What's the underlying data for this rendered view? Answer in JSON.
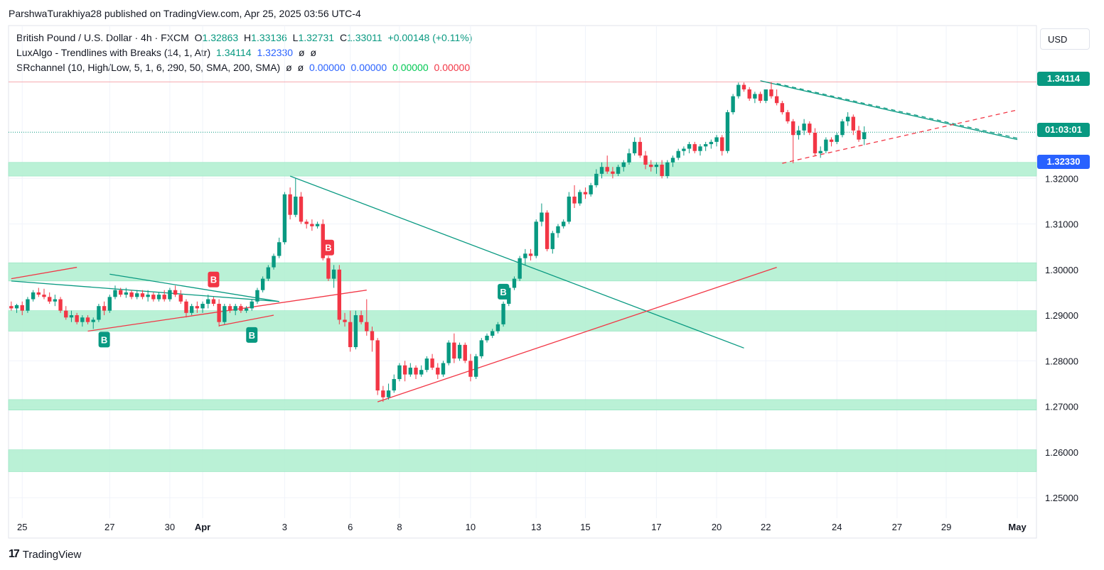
{
  "header": {
    "publisher_line": "ParshwaTurakhiya28 published on TradingView.com, Apr 25, 2025 03:56 UTC-4"
  },
  "legend": {
    "symbol": "British Pound / U.S. Dollar · 4h · FXCM",
    "o_label": "O",
    "o": "1.32863",
    "h_label": "H",
    "h": "1.33136",
    "l_label": "L",
    "l": "1.32731",
    "c_label": "C",
    "c": "1.33011",
    "change": "+0.00148 (+0.11%)",
    "ind1_name": "LuxAlgo - Trendlines with Breaks (14, 1, Atr)",
    "ind1_v1": "1.34114",
    "ind1_v2": "1.32330",
    "ind1_v3": "ø",
    "ind1_v4": "ø",
    "ind2_name": "SRchannel (10, High/Low, 5, 1, 6, 290, 50, SMA, 200, SMA)",
    "ind2_v1": "ø",
    "ind2_v2": "ø",
    "ind2_v3": "0.00000",
    "ind2_v4": "0.00000",
    "ind2_v5": "0.00000",
    "ind2_v6": "0.00000"
  },
  "currency": "USD",
  "price_tags": {
    "upper": "1.34114",
    "countdown": "01:03:01",
    "lower": "1.32330"
  },
  "footer": {
    "brand": "TradingView",
    "logo_glyph": "17"
  },
  "colors": {
    "up": "#089981",
    "down": "#f23645",
    "zone": "#b2f0d2",
    "accent_blue": "#2962ff"
  },
  "chart_data": {
    "type": "candlestick",
    "symbol": "GBPUSD",
    "timeframe": "4h",
    "ylim": [
      1.2455,
      1.3535
    ],
    "y_ticks": [
      "1.32000",
      "1.31000",
      "1.30000",
      "1.29000",
      "1.28000",
      "1.27000",
      "1.26000",
      "1.25000"
    ],
    "y_tick_values": [
      1.32,
      1.31,
      1.3,
      1.29,
      1.28,
      1.27,
      1.26,
      1.25
    ],
    "x_ticks": [
      {
        "label": "25",
        "bar": 2
      },
      {
        "label": "27",
        "bar": 18
      },
      {
        "label": "30",
        "bar": 29
      },
      {
        "label": "Apr",
        "bar": 35
      },
      {
        "label": "3",
        "bar": 50
      },
      {
        "label": "6",
        "bar": 62
      },
      {
        "label": "8",
        "bar": 71
      },
      {
        "label": "10",
        "bar": 84
      },
      {
        "label": "13",
        "bar": 96
      },
      {
        "label": "15",
        "bar": 105
      },
      {
        "label": "17",
        "bar": 118
      },
      {
        "label": "20",
        "bar": 129
      },
      {
        "label": "22",
        "bar": 138
      },
      {
        "label": "24",
        "bar": 151
      },
      {
        "label": "27",
        "bar": 162
      },
      {
        "label": "29",
        "bar": 171
      },
      {
        "label": "May",
        "bar": 184
      }
    ],
    "sr_zones": [
      [
        1.3205,
        1.3235
      ],
      [
        1.2975,
        1.3015
      ],
      [
        1.2865,
        1.291
      ],
      [
        1.2692,
        1.2715
      ],
      [
        1.2557,
        1.2605
      ]
    ],
    "candles": [
      [
        1.292,
        1.293,
        1.291,
        1.2915
      ],
      [
        1.2915,
        1.2925,
        1.2905,
        1.2922
      ],
      [
        1.2922,
        1.293,
        1.29,
        1.291
      ],
      [
        1.291,
        1.294,
        1.2905,
        1.2935
      ],
      [
        1.2935,
        1.2955,
        1.293,
        1.295
      ],
      [
        1.295,
        1.296,
        1.294,
        1.2945
      ],
      [
        1.2945,
        1.2958,
        1.2935,
        1.294
      ],
      [
        1.294,
        1.295,
        1.2925,
        1.293
      ],
      [
        1.293,
        1.2945,
        1.292,
        1.2935
      ],
      [
        1.2935,
        1.294,
        1.2905,
        1.291
      ],
      [
        1.291,
        1.292,
        1.289,
        1.2895
      ],
      [
        1.2895,
        1.291,
        1.2885,
        1.29
      ],
      [
        1.29,
        1.2905,
        1.288,
        1.2885
      ],
      [
        1.2885,
        1.29,
        1.2875,
        1.2895
      ],
      [
        1.2895,
        1.29,
        1.288,
        1.2885
      ],
      [
        1.2885,
        1.2895,
        1.287,
        1.289
      ],
      [
        1.289,
        1.2925,
        1.2885,
        1.292
      ],
      [
        1.292,
        1.293,
        1.29,
        1.291
      ],
      [
        1.291,
        1.2945,
        1.2905,
        1.294
      ],
      [
        1.294,
        1.2965,
        1.2935,
        1.2955
      ],
      [
        1.2955,
        1.296,
        1.294,
        1.2945
      ],
      [
        1.2945,
        1.296,
        1.2938,
        1.295
      ],
      [
        1.295,
        1.2955,
        1.2935,
        1.294
      ],
      [
        1.294,
        1.2955,
        1.2935,
        1.2948
      ],
      [
        1.2948,
        1.2955,
        1.2935,
        1.294
      ],
      [
        1.294,
        1.2955,
        1.293,
        1.2945
      ],
      [
        1.2945,
        1.295,
        1.293,
        1.2935
      ],
      [
        1.2935,
        1.295,
        1.293,
        1.2945
      ],
      [
        1.2945,
        1.2955,
        1.293,
        1.2935
      ],
      [
        1.2935,
        1.296,
        1.293,
        1.2955
      ],
      [
        1.2955,
        1.2965,
        1.294,
        1.2945
      ],
      [
        1.2945,
        1.2955,
        1.2925,
        1.293
      ],
      [
        1.293,
        1.2935,
        1.2895,
        1.2905
      ],
      [
        1.2905,
        1.2925,
        1.29,
        1.292
      ],
      [
        1.292,
        1.293,
        1.2905,
        1.2915
      ],
      [
        1.2915,
        1.293,
        1.2905,
        1.2925
      ],
      [
        1.2925,
        1.2945,
        1.2915,
        1.2935
      ],
      [
        1.2935,
        1.294,
        1.292,
        1.2925
      ],
      [
        1.2925,
        1.2935,
        1.2875,
        1.2885
      ],
      [
        1.2885,
        1.2925,
        1.288,
        1.292
      ],
      [
        1.292,
        1.2925,
        1.2905,
        1.291
      ],
      [
        1.291,
        1.2925,
        1.29,
        1.292
      ],
      [
        1.292,
        1.2925,
        1.2905,
        1.291
      ],
      [
        1.291,
        1.292,
        1.2905,
        1.2915
      ],
      [
        1.2915,
        1.2935,
        1.291,
        1.293
      ],
      [
        1.293,
        1.296,
        1.2925,
        1.2955
      ],
      [
        1.2955,
        1.2985,
        1.295,
        1.298
      ],
      [
        1.298,
        1.301,
        1.2975,
        1.3005
      ],
      [
        1.3005,
        1.3035,
        1.3,
        1.303
      ],
      [
        1.303,
        1.307,
        1.3025,
        1.306
      ],
      [
        1.306,
        1.317,
        1.3055,
        1.3165
      ],
      [
        1.3165,
        1.318,
        1.311,
        1.312
      ],
      [
        1.312,
        1.32,
        1.3115,
        1.316
      ],
      [
        1.316,
        1.317,
        1.31,
        1.3105
      ],
      [
        1.3105,
        1.311,
        1.309,
        1.31
      ],
      [
        1.31,
        1.311,
        1.3085,
        1.3095
      ],
      [
        1.3095,
        1.3105,
        1.309,
        1.31
      ],
      [
        1.31,
        1.311,
        1.302,
        1.3025
      ],
      [
        1.3025,
        1.303,
        1.2975,
        1.298
      ],
      [
        1.298,
        1.301,
        1.296,
        1.3
      ],
      [
        1.3,
        1.301,
        1.288,
        1.289
      ],
      [
        1.289,
        1.2905,
        1.2875,
        1.2885
      ],
      [
        1.2885,
        1.291,
        1.282,
        1.283
      ],
      [
        1.283,
        1.291,
        1.2825,
        1.29
      ],
      [
        1.29,
        1.291,
        1.288,
        1.2885
      ],
      [
        1.2885,
        1.2935,
        1.2855,
        1.2865
      ],
      [
        1.2865,
        1.2875,
        1.282,
        1.2845
      ],
      [
        1.2845,
        1.285,
        1.2725,
        1.2735
      ],
      [
        1.2735,
        1.2745,
        1.271,
        1.272
      ],
      [
        1.272,
        1.275,
        1.2715,
        1.2735
      ],
      [
        1.2735,
        1.277,
        1.273,
        1.276
      ],
      [
        1.276,
        1.2795,
        1.2755,
        1.279
      ],
      [
        1.279,
        1.28,
        1.2755,
        1.277
      ],
      [
        1.277,
        1.2795,
        1.2765,
        1.2785
      ],
      [
        1.2785,
        1.279,
        1.276,
        1.277
      ],
      [
        1.277,
        1.279,
        1.2765,
        1.278
      ],
      [
        1.278,
        1.281,
        1.2775,
        1.2805
      ],
      [
        1.2805,
        1.2815,
        1.278,
        1.2785
      ],
      [
        1.2785,
        1.2795,
        1.276,
        1.277
      ],
      [
        1.277,
        1.28,
        1.2765,
        1.2795
      ],
      [
        1.2795,
        1.2845,
        1.279,
        1.284
      ],
      [
        1.284,
        1.286,
        1.2795,
        1.2805
      ],
      [
        1.2805,
        1.284,
        1.28,
        1.2835
      ],
      [
        1.2835,
        1.284,
        1.2795,
        1.28
      ],
      [
        1.28,
        1.2815,
        1.2755,
        1.2765
      ],
      [
        1.2765,
        1.2815,
        1.276,
        1.281
      ],
      [
        1.281,
        1.285,
        1.2805,
        1.2845
      ],
      [
        1.2845,
        1.286,
        1.284,
        1.2855
      ],
      [
        1.2855,
        1.287,
        1.285,
        1.2865
      ],
      [
        1.2865,
        1.2885,
        1.286,
        1.288
      ],
      [
        1.288,
        1.293,
        1.2875,
        1.2925
      ],
      [
        1.2925,
        1.2965,
        1.292,
        1.296
      ],
      [
        1.296,
        1.2985,
        1.2955,
        1.298
      ],
      [
        1.298,
        1.303,
        1.2975,
        1.3025
      ],
      [
        1.3025,
        1.3045,
        1.301,
        1.3035
      ],
      [
        1.3035,
        1.3045,
        1.302,
        1.303
      ],
      [
        1.303,
        1.311,
        1.3025,
        1.3105
      ],
      [
        1.3105,
        1.3145,
        1.3095,
        1.3125
      ],
      [
        1.3125,
        1.313,
        1.304,
        1.3045
      ],
      [
        1.3045,
        1.3085,
        1.3035,
        1.308
      ],
      [
        1.308,
        1.31,
        1.307,
        1.3095
      ],
      [
        1.3095,
        1.311,
        1.309,
        1.3105
      ],
      [
        1.3105,
        1.317,
        1.31,
        1.316
      ],
      [
        1.316,
        1.3185,
        1.3135,
        1.3145
      ],
      [
        1.3145,
        1.3175,
        1.314,
        1.317
      ],
      [
        1.317,
        1.318,
        1.3155,
        1.3165
      ],
      [
        1.3165,
        1.319,
        1.316,
        1.3185
      ],
      [
        1.3185,
        1.322,
        1.318,
        1.321
      ],
      [
        1.321,
        1.3235,
        1.32,
        1.3225
      ],
      [
        1.3225,
        1.325,
        1.321,
        1.3215
      ],
      [
        1.3215,
        1.3225,
        1.32,
        1.321
      ],
      [
        1.321,
        1.323,
        1.3205,
        1.3225
      ],
      [
        1.3225,
        1.324,
        1.3215,
        1.3235
      ],
      [
        1.3235,
        1.3265,
        1.323,
        1.3255
      ],
      [
        1.3255,
        1.329,
        1.325,
        1.328
      ],
      [
        1.328,
        1.329,
        1.3245,
        1.325
      ],
      [
        1.325,
        1.326,
        1.322,
        1.323
      ],
      [
        1.323,
        1.324,
        1.3215,
        1.3225
      ],
      [
        1.3225,
        1.3235,
        1.321,
        1.323
      ],
      [
        1.323,
        1.324,
        1.32,
        1.3205
      ],
      [
        1.3205,
        1.324,
        1.32,
        1.3235
      ],
      [
        1.3235,
        1.325,
        1.3225,
        1.3245
      ],
      [
        1.3245,
        1.3265,
        1.324,
        1.326
      ],
      [
        1.326,
        1.327,
        1.325,
        1.3265
      ],
      [
        1.3265,
        1.328,
        1.3255,
        1.3275
      ],
      [
        1.3275,
        1.328,
        1.3255,
        1.326
      ],
      [
        1.326,
        1.3275,
        1.325,
        1.327
      ],
      [
        1.327,
        1.328,
        1.326,
        1.3275
      ],
      [
        1.3275,
        1.3285,
        1.3265,
        1.328
      ],
      [
        1.328,
        1.3295,
        1.327,
        1.329
      ],
      [
        1.329,
        1.3295,
        1.325,
        1.326
      ],
      [
        1.326,
        1.335,
        1.3255,
        1.3345
      ],
      [
        1.3345,
        1.3385,
        1.334,
        1.338
      ],
      [
        1.338,
        1.341,
        1.3375,
        1.3405
      ],
      [
        1.3405,
        1.341,
        1.339,
        1.3395
      ],
      [
        1.3395,
        1.34,
        1.337,
        1.3375
      ],
      [
        1.3375,
        1.339,
        1.3365,
        1.3385
      ],
      [
        1.3385,
        1.339,
        1.3365,
        1.337
      ],
      [
        1.337,
        1.339,
        1.3365,
        1.3395
      ],
      [
        1.3395,
        1.3411,
        1.3375,
        1.338
      ],
      [
        1.338,
        1.3395,
        1.336,
        1.3365
      ],
      [
        1.3365,
        1.337,
        1.334,
        1.3345
      ],
      [
        1.3345,
        1.335,
        1.332,
        1.3325
      ],
      [
        1.3325,
        1.333,
        1.3233,
        1.3295
      ],
      [
        1.3295,
        1.3315,
        1.3285,
        1.3305
      ],
      [
        1.3305,
        1.333,
        1.3295,
        1.332
      ],
      [
        1.332,
        1.3325,
        1.3295,
        1.33
      ],
      [
        1.33,
        1.331,
        1.325,
        1.3255
      ],
      [
        1.3255,
        1.327,
        1.3245,
        1.326
      ],
      [
        1.326,
        1.329,
        1.3255,
        1.3285
      ],
      [
        1.3285,
        1.329,
        1.327,
        1.328
      ],
      [
        1.328,
        1.33,
        1.3275,
        1.3295
      ],
      [
        1.3295,
        1.333,
        1.329,
        1.3325
      ],
      [
        1.3325,
        1.3345,
        1.3315,
        1.3335
      ],
      [
        1.3335,
        1.334,
        1.3295,
        1.3305
      ],
      [
        1.3305,
        1.3315,
        1.328,
        1.3285
      ],
      [
        1.3286,
        1.3314,
        1.3273,
        1.3301
      ]
    ],
    "trendlines": [
      {
        "color": "#089981",
        "dash": false,
        "points": [
          [
            0,
            1.2975
          ],
          [
            49,
            1.293
          ]
        ]
      },
      {
        "color": "#089981",
        "dash": false,
        "points": [
          [
            18,
            1.299
          ],
          [
            49,
            1.293
          ]
        ]
      },
      {
        "color": "#f23645",
        "dash": false,
        "points": [
          [
            0,
            1.298
          ],
          [
            12,
            1.3005
          ]
        ]
      },
      {
        "color": "#f23645",
        "dash": false,
        "points": [
          [
            14,
            1.2865
          ],
          [
            65,
            1.2955
          ]
        ]
      },
      {
        "color": "#f23645",
        "dash": false,
        "points": [
          [
            38,
            1.2877
          ],
          [
            48,
            1.29
          ]
        ]
      },
      {
        "color": "#089981",
        "dash": false,
        "points": [
          [
            51,
            1.3205
          ],
          [
            134,
            1.2828
          ]
        ]
      },
      {
        "color": "#f23645",
        "dash": false,
        "points": [
          [
            67,
            1.271
          ],
          [
            140,
            1.3005
          ]
        ]
      },
      {
        "color": "#089981",
        "dash": false,
        "points": [
          [
            137,
            1.3414
          ],
          [
            184,
            1.3285
          ]
        ]
      },
      {
        "color": "#089981",
        "dash": true,
        "points": [
          [
            140,
            1.3408
          ],
          [
            184,
            1.3288
          ]
        ]
      },
      {
        "color": "#f23645",
        "dash": true,
        "points": [
          [
            141,
            1.3233
          ],
          [
            184,
            1.335
          ]
        ]
      }
    ],
    "horizontal_lines": [
      {
        "price": 1.34114,
        "color": "#f7a8ae",
        "dash": false
      },
      {
        "price": 1.33011,
        "color": "#089981",
        "dash": "dot"
      }
    ],
    "break_labels": [
      {
        "text": "B",
        "bar": 17,
        "price": 1.287,
        "side": "below",
        "color": "#089981"
      },
      {
        "text": "B",
        "bar": 37,
        "price": 1.2955,
        "side": "above",
        "color": "#f23645"
      },
      {
        "text": "B",
        "bar": 44,
        "price": 1.288,
        "side": "below",
        "color": "#089981"
      },
      {
        "text": "B",
        "bar": 58,
        "price": 1.3025,
        "side": "above",
        "color": "#f23645"
      },
      {
        "text": "B",
        "bar": 90,
        "price": 1.2975,
        "side": "below",
        "color": "#089981"
      }
    ]
  }
}
